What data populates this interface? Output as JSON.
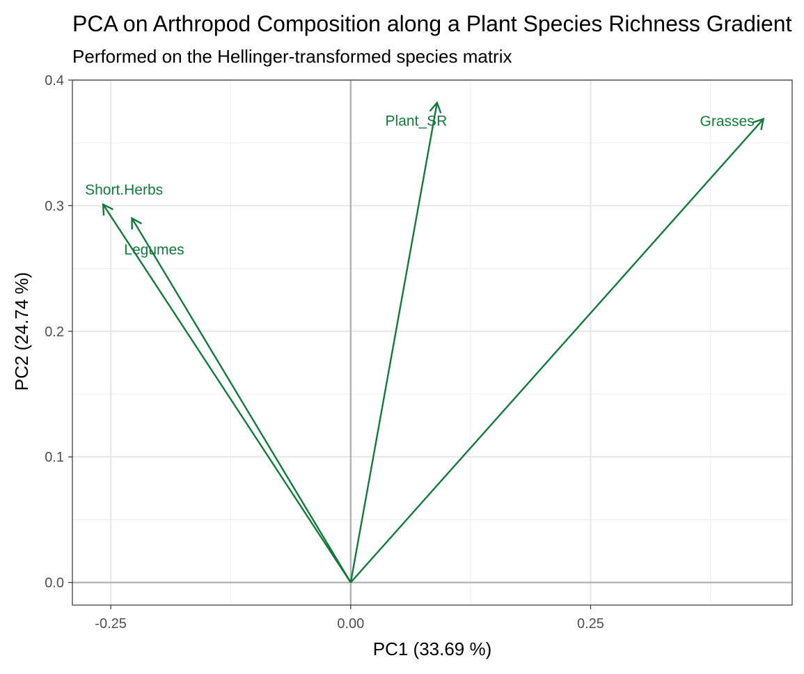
{
  "chart_data": {
    "type": "scatter",
    "title": "PCA on Arthropod Composition along a Plant Species Richness Gradient",
    "subtitle": "Performed on the Hellinger-transformed species matrix",
    "xlabel": "PC1 (33.69 %)",
    "ylabel": "PC2 (24.74 %)",
    "xlim": [
      -0.29,
      0.46
    ],
    "ylim": [
      -0.018,
      0.4
    ],
    "x_ticks": [
      -0.25,
      0.0,
      0.25
    ],
    "x_tick_labels": [
      "-0.25",
      "0.00",
      "0.25"
    ],
    "y_ticks": [
      0.0,
      0.1,
      0.2,
      0.3,
      0.4
    ],
    "y_tick_labels": [
      "0.0",
      "0.1",
      "0.2",
      "0.3",
      "0.4"
    ],
    "grid": true,
    "zero_lines": true,
    "vectors": [
      {
        "label": "Short.Herbs",
        "x": -0.258,
        "y": 0.301
      },
      {
        "label": "Legumes",
        "x": -0.228,
        "y": 0.29
      },
      {
        "label": "Plant_SR",
        "x": 0.09,
        "y": 0.382
      },
      {
        "label": "Grasses",
        "x": 0.43,
        "y": 0.369
      }
    ],
    "colors": {
      "vector": "#117a3a",
      "grid_major": "#e6e6e6",
      "grid_minor": "#f0f0f0",
      "zero_line": "#b3b3b3",
      "panel_border": "#333333",
      "tick_label": "#4d4d4d"
    }
  }
}
